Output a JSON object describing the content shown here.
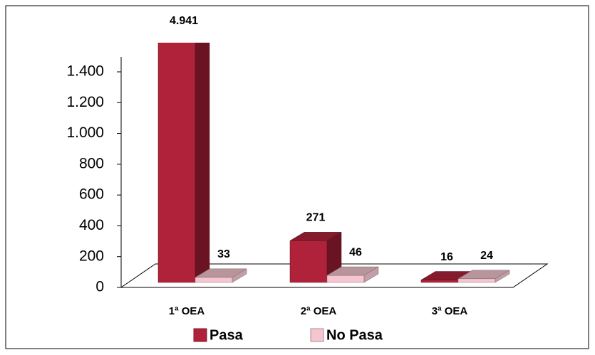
{
  "chart_data": {
    "type": "bar3d",
    "categories": [
      "1ª OEA",
      "2ª OEA",
      "3ª OEA"
    ],
    "series": [
      {
        "name": "Pasa",
        "color": "#b0223a",
        "values": [
          4941,
          271,
          16
        ],
        "value_labels": [
          "4.941",
          "271",
          "16"
        ]
      },
      {
        "name": "No Pasa",
        "color": "#f5c6cf",
        "values": [
          33,
          46,
          24
        ],
        "value_labels": [
          "33",
          "46",
          "24"
        ]
      }
    ],
    "ylim": [
      0,
      1550
    ],
    "yticks": [
      0,
      200,
      400,
      600,
      800,
      {
        "value": 1000,
        "label": "1.000"
      },
      {
        "value": 1200,
        "label": "1.200"
      },
      {
        "value": 1400,
        "label": "1.400"
      }
    ],
    "legend": "bottom"
  }
}
